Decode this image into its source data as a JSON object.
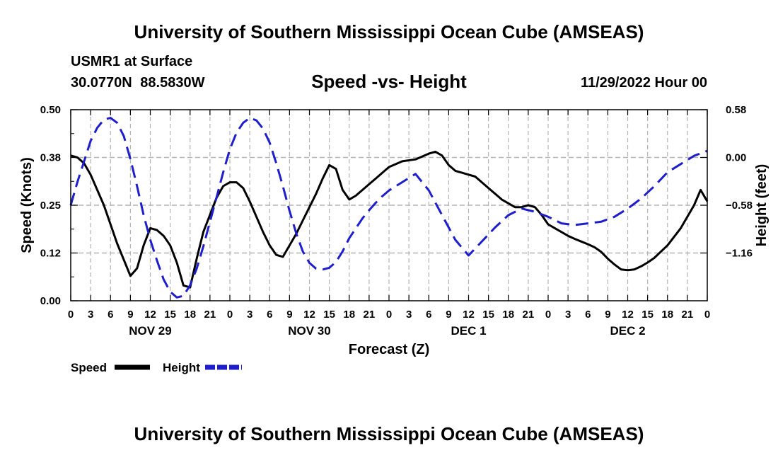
{
  "header": {
    "title": "University of Southern Mississippi Ocean Cube (AMSEAS)",
    "station": "USMR1 at Surface",
    "coords": "30.0770N  88.5830W",
    "date": "11/29/2022 Hour 00"
  },
  "footer": {
    "title": "University of Southern Mississippi Ocean Cube (AMSEAS)"
  },
  "chart_data": {
    "type": "line",
    "title": "Speed -vs- Height",
    "xlabel": "Forecast (Z)",
    "ylabel": "Speed (Knots)",
    "ylabel_right": "Height (feet)",
    "x_range": [
      0,
      96
    ],
    "ylim": [
      0,
      0.5
    ],
    "ylim_right": [
      -1.74,
      0.58
    ],
    "x_ticks": [
      0,
      3,
      6,
      9,
      12,
      15,
      18,
      21,
      24,
      27,
      30,
      33,
      36,
      39,
      42,
      45,
      48,
      51,
      54,
      57,
      60,
      63,
      66,
      69,
      72,
      75,
      78,
      81,
      84,
      87,
      90,
      93,
      96
    ],
    "x_tick_labels": [
      "0",
      "3",
      "6",
      "9",
      "12",
      "15",
      "18",
      "21",
      "0",
      "3",
      "6",
      "9",
      "12",
      "15",
      "18",
      "21",
      "0",
      "3",
      "6",
      "9",
      "12",
      "15",
      "18",
      "21",
      "0",
      "3",
      "6",
      "9",
      "12",
      "15",
      "18",
      "21",
      "0"
    ],
    "day_labels": [
      {
        "x": 12,
        "label": "NOV 29"
      },
      {
        "x": 36,
        "label": "NOV 30"
      },
      {
        "x": 60,
        "label": "DEC 1"
      },
      {
        "x": 84,
        "label": "DEC 2"
      }
    ],
    "y_ticks_left": [
      0.0,
      0.125,
      0.25,
      0.375,
      0.5
    ],
    "y_tick_labels_left": [
      "0.00",
      "0.12",
      "0.25",
      "0.38",
      "0.50"
    ],
    "y_ticks_right": [
      0.58,
      0.0,
      -0.58,
      -1.16
    ],
    "y_tick_labels_right": [
      "0.58",
      "0.00",
      "−0.58",
      "−1.16"
    ],
    "series": [
      {
        "name": "Speed",
        "axis": "left",
        "color": "#000000",
        "dashed": false,
        "x": [
          0,
          1,
          2,
          3,
          5,
          7,
          9,
          10,
          11,
          12,
          13,
          14,
          15,
          16,
          17,
          18,
          19,
          20,
          21,
          22,
          23,
          24,
          25,
          26,
          27,
          28,
          29,
          30,
          31,
          32,
          34,
          35,
          36,
          37,
          38,
          39,
          40,
          41,
          42,
          43,
          44,
          45,
          46,
          47,
          48,
          50,
          52,
          54,
          55,
          56,
          57,
          58,
          59,
          60,
          61,
          62,
          63,
          64,
          65,
          66,
          67,
          68,
          69,
          70,
          71,
          72,
          73,
          74,
          75,
          76,
          77,
          78,
          79,
          80,
          81,
          82,
          83,
          84,
          85,
          86,
          87,
          88,
          90,
          92,
          94,
          95,
          96
        ],
        "y": [
          0.38,
          0.375,
          0.36,
          0.33,
          0.25,
          0.15,
          0.065,
          0.085,
          0.145,
          0.19,
          0.185,
          0.17,
          0.145,
          0.1,
          0.04,
          0.035,
          0.11,
          0.18,
          0.225,
          0.27,
          0.3,
          0.31,
          0.31,
          0.295,
          0.26,
          0.22,
          0.18,
          0.145,
          0.12,
          0.115,
          0.175,
          0.21,
          0.245,
          0.28,
          0.32,
          0.355,
          0.345,
          0.29,
          0.265,
          0.275,
          0.29,
          0.305,
          0.32,
          0.335,
          0.35,
          0.365,
          0.37,
          0.385,
          0.39,
          0.38,
          0.355,
          0.34,
          0.335,
          0.33,
          0.325,
          0.31,
          0.295,
          0.28,
          0.265,
          0.255,
          0.245,
          0.245,
          0.25,
          0.245,
          0.225,
          0.2,
          0.19,
          0.18,
          0.17,
          0.162,
          0.155,
          0.148,
          0.14,
          0.128,
          0.11,
          0.095,
          0.082,
          0.08,
          0.082,
          0.09,
          0.1,
          0.112,
          0.145,
          0.19,
          0.25,
          0.29,
          0.26
        ]
      },
      {
        "name": "Height",
        "axis": "right",
        "color": "#1e1ecc",
        "dashed": true,
        "x": [
          0,
          1,
          2,
          3,
          4,
          5,
          6,
          7,
          8,
          9,
          10,
          11,
          12,
          13,
          14,
          15,
          16,
          17,
          18,
          19,
          20,
          21,
          22,
          23,
          24,
          25,
          26,
          27,
          28,
          29,
          30,
          31,
          32,
          33,
          34,
          35,
          36,
          37,
          38,
          39,
          40,
          41,
          42,
          43,
          44,
          45,
          46,
          47,
          48,
          50,
          52,
          54,
          56,
          58,
          60,
          62,
          64,
          66,
          68,
          70,
          72,
          74,
          76,
          78,
          80,
          82,
          84,
          86,
          88,
          90,
          92,
          94,
          96
        ],
        "y": [
          -0.58,
          -0.3,
          -0.05,
          0.2,
          0.36,
          0.46,
          0.48,
          0.42,
          0.26,
          -0.02,
          -0.35,
          -0.7,
          -1.0,
          -1.25,
          -1.48,
          -1.63,
          -1.7,
          -1.68,
          -1.55,
          -1.35,
          -1.08,
          -0.78,
          -0.48,
          -0.18,
          0.1,
          0.3,
          0.42,
          0.48,
          0.45,
          0.35,
          0.18,
          -0.07,
          -0.35,
          -0.65,
          -0.92,
          -1.14,
          -1.28,
          -1.35,
          -1.36,
          -1.34,
          -1.27,
          -1.14,
          -0.98,
          -0.86,
          -0.74,
          -0.64,
          -0.55,
          -0.47,
          -0.4,
          -0.3,
          -0.2,
          -0.4,
          -0.7,
          -1.0,
          -1.19,
          -1.02,
          -0.85,
          -0.7,
          -0.62,
          -0.66,
          -0.72,
          -0.8,
          -0.82,
          -0.8,
          -0.78,
          -0.72,
          -0.62,
          -0.5,
          -0.35,
          -0.18,
          -0.08,
          0.02,
          0.08
        ]
      }
    ],
    "legend": {
      "position": "bottom-left",
      "entries": [
        "Speed",
        "Height"
      ]
    },
    "grid": true
  }
}
